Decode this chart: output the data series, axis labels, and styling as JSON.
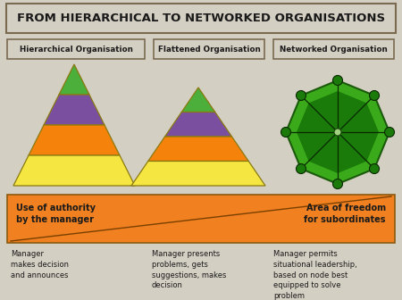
{
  "title": "FROM HIERARCHICAL TO NETWORKED ORGANISATIONS",
  "bg_color": "#d4cfc3",
  "title_box_color": "#d4cfc3",
  "title_border_color": "#7a6a50",
  "headers": [
    "Hierarchical Organisation",
    "Flattened Organisation",
    "Networked Organisation"
  ],
  "header_box_color": "#d4cfc3",
  "header_border_color": "#7a6a50",
  "pyramid1_colors": [
    "#f5e642",
    "#f5820a",
    "#7b4fa0",
    "#4cae3b"
  ],
  "pyramid2_colors": [
    "#f5e642",
    "#f5820a",
    "#7b4fa0",
    "#4cae3b"
  ],
  "network_fill": "#3aaa1a",
  "network_dark": "#1a7a0a",
  "network_edge": "#1a5a0a",
  "arrow_bg_color": "#f08020",
  "arrow_border_color": "#8a5a10",
  "left_label": "Use of authority\nby the manager",
  "right_label": "Area of freedom\nfor subordinates",
  "desc1": "Manager\nmakes decision\nand announces",
  "desc2": "Manager presents\nproblems, gets\nsuggestions, makes\ndecision",
  "desc3": "Manager permits\nsituational leadership,\nbased on node best\nequipped to solve\nproblem"
}
